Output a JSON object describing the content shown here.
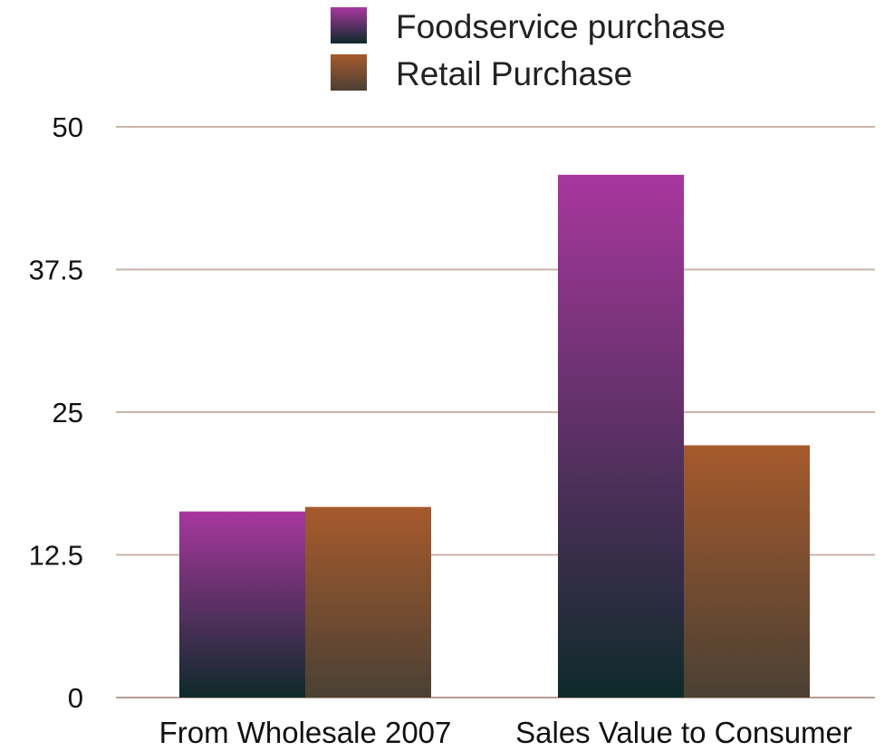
{
  "chart_data": {
    "type": "bar",
    "categories": [
      "From Wholesale 2007",
      "Sales Value to Consumer"
    ],
    "series": [
      {
        "name": "Foodservice purchase",
        "values": [
          16.3,
          45.8
        ],
        "color_top": "#a8379e",
        "color_bottom": "#0e2a2a"
      },
      {
        "name": "Retail Purchase",
        "values": [
          16.7,
          22.1
        ],
        "color_top": "#a65a2c",
        "color_bottom": "#4a4034"
      }
    ],
    "yticks": [
      "0",
      "12.5",
      "25",
      "37.5",
      "50"
    ],
    "ylim": [
      0,
      50
    ],
    "grid": true,
    "legend_position": "top-center",
    "title": "",
    "xlabel": "",
    "ylabel": ""
  }
}
